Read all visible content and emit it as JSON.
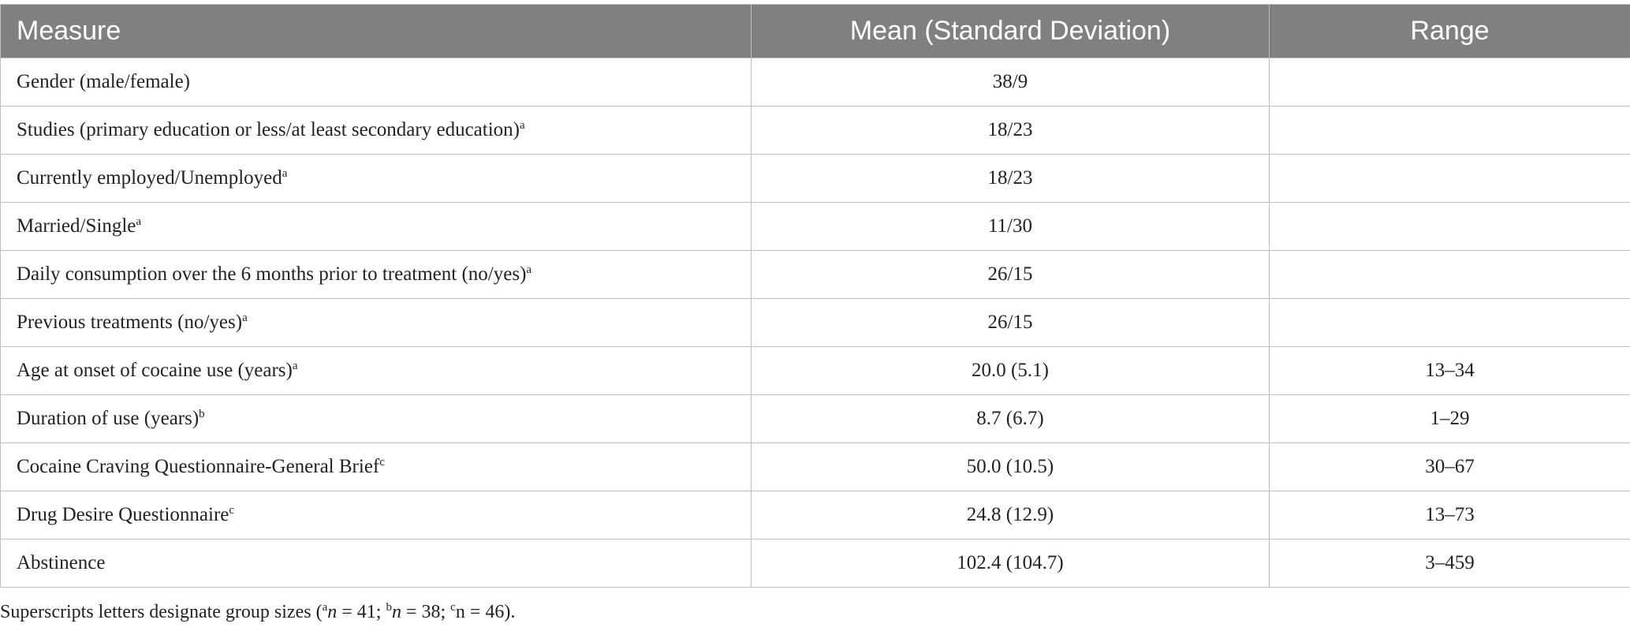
{
  "table": {
    "header": [
      "Measure",
      "Mean (Standard Deviation)",
      "Range"
    ],
    "rows": [
      {
        "measure": "Gender (male/female)",
        "mean": "38/9"
      },
      {
        "measure": "Studies (primary education or less/at least secondary education)",
        "sup": "a",
        "mean": "18/23"
      },
      {
        "measure": "Currently employed/Unemployed",
        "sup": "a",
        "mean": "18/23"
      },
      {
        "measure": "Married/Single",
        "sup": "a",
        "mean": "11/30"
      },
      {
        "measure": "Daily consumption over the 6 months prior to treatment (no/yes)",
        "sup": "a",
        "mean": "26/15"
      },
      {
        "measure": "Previous treatments (no/yes)",
        "sup": "a",
        "mean": "26/15"
      },
      {
        "measure": "Age at onset of cocaine use (years)",
        "sup": "a",
        "mean": "20.0 (5.1)",
        "range": "13–34"
      },
      {
        "measure": "Duration of use (years)",
        "sup": "b",
        "mean": "8.7 (6.7)",
        "range": "1–29"
      },
      {
        "measure": "Cocaine Craving Questionnaire-General Brief",
        "sup": "c",
        "mean": "50.0 (10.5)",
        "range": "30–67"
      },
      {
        "measure": "Drug Desire Questionnaire",
        "sup": "c",
        "mean": "24.8 (12.9)",
        "range": "13–73"
      },
      {
        "measure": "Abstinence",
        "mean": "102.4 (104.7)",
        "range": "3–459"
      }
    ]
  },
  "footnote": [
    "Superscripts letters designate group sizes (",
    "a",
    "n",
    " = 41; ",
    "b",
    "n",
    " = 38; ",
    "c",
    "n = 46",
    ")."
  ]
}
